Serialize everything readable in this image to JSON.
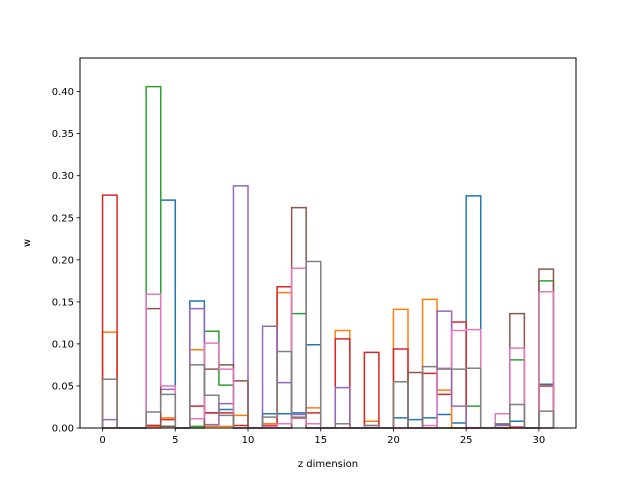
{
  "chart_data": {
    "type": "step-histogram",
    "xlabel": "z dimension",
    "ylabel": "w",
    "xlim": [
      -1.55,
      32.55
    ],
    "ylim": [
      0,
      0.44
    ],
    "x_ticks": [
      0,
      5,
      10,
      15,
      20,
      25,
      30
    ],
    "y_ticks": [
      0.0,
      0.05,
      0.1,
      0.15,
      0.2,
      0.25,
      0.3,
      0.35,
      0.4
    ],
    "y_tick_labels": [
      "0.00",
      "0.05",
      "0.10",
      "0.15",
      "0.20",
      "0.25",
      "0.30",
      "0.35",
      "0.40"
    ],
    "x_tick_labels": [
      "0",
      "5",
      "10",
      "15",
      "20",
      "25",
      "30"
    ],
    "bins": [
      0,
      1,
      2,
      3,
      4,
      5,
      6,
      7,
      8,
      9,
      10,
      11,
      12,
      13,
      14,
      15,
      16,
      17,
      18,
      19,
      20,
      21,
      22,
      23,
      24,
      25,
      26,
      27,
      28,
      29,
      30,
      31
    ],
    "series": [
      {
        "color": "#1f77b4",
        "values": [
          0,
          0,
          0,
          0.003,
          0.271,
          0,
          0.151,
          0.018,
          0.022,
          0,
          0,
          0.017,
          0.017,
          0.018,
          0.099,
          0,
          0.005,
          0,
          0,
          0,
          0.012,
          0.01,
          0.012,
          0.016,
          0.006,
          0.276,
          0,
          0.004,
          0.008,
          0,
          0.052
        ]
      },
      {
        "color": "#ff7f0e",
        "values": [
          0.114,
          0,
          0,
          0.002,
          0.012,
          0,
          0.093,
          0.002,
          0.002,
          0.015,
          0,
          0.005,
          0.161,
          0.012,
          0.024,
          0,
          0.116,
          0,
          0.008,
          0,
          0.141,
          0,
          0.153,
          0.045,
          0,
          0,
          0,
          0,
          0,
          0,
          0
        ]
      },
      {
        "color": "#2ca02c",
        "values": [
          0,
          0,
          0,
          0.406,
          0.002,
          0,
          0.002,
          0.115,
          0.051,
          0,
          0,
          0,
          0,
          0.136,
          0,
          0,
          0,
          0,
          0,
          0,
          0,
          0,
          0,
          0,
          0,
          0.026,
          0,
          0,
          0.081,
          0,
          0.175
        ]
      },
      {
        "color": "#d62728",
        "values": [
          0.277,
          0,
          0,
          0.003,
          0.01,
          0,
          0.026,
          0.018,
          0.018,
          0.003,
          0,
          0.003,
          0.168,
          0.012,
          0.018,
          0,
          0.106,
          0,
          0.09,
          0,
          0.094,
          0,
          0.065,
          0.04,
          0.126,
          0,
          0,
          0,
          0.001,
          0,
          0.05
        ]
      },
      {
        "color": "#9467bd",
        "values": [
          0.01,
          0,
          0,
          0,
          0.046,
          0,
          0.142,
          0.004,
          0.029,
          0.288,
          0,
          0.121,
          0.054,
          0.016,
          0,
          0,
          0.048,
          0,
          0,
          0,
          0,
          0,
          0,
          0.139,
          0.026,
          0,
          0,
          0.003,
          0,
          0,
          0
        ]
      },
      {
        "color": "#8c564b",
        "values": [
          0,
          0,
          0,
          0.142,
          0.002,
          0,
          0,
          0.07,
          0.075,
          0.056,
          0,
          0,
          0,
          0.262,
          0,
          0,
          0,
          0,
          0,
          0,
          0,
          0.066,
          0,
          0,
          0,
          0,
          0,
          0,
          0.136,
          0,
          0.189
        ]
      },
      {
        "color": "#e377c2",
        "values": [
          0,
          0,
          0,
          0.159,
          0.05,
          0,
          0.011,
          0.101,
          0.07,
          0,
          0,
          0.002,
          0.005,
          0.19,
          0.005,
          0,
          0,
          0,
          0.003,
          0,
          0,
          0,
          0.003,
          0.071,
          0.116,
          0.117,
          0,
          0.017,
          0.095,
          0,
          0.162
        ]
      },
      {
        "color": "#7f7f7f",
        "values": [
          0.058,
          0,
          0,
          0.019,
          0.04,
          0,
          0.075,
          0.039,
          0.015,
          0,
          0,
          0.013,
          0.091,
          0.013,
          0.198,
          0,
          0.005,
          0,
          0.003,
          0,
          0.055,
          0,
          0.073,
          0.07,
          0.07,
          0.071,
          0,
          0.005,
          0.028,
          0,
          0.02
        ]
      }
    ]
  }
}
